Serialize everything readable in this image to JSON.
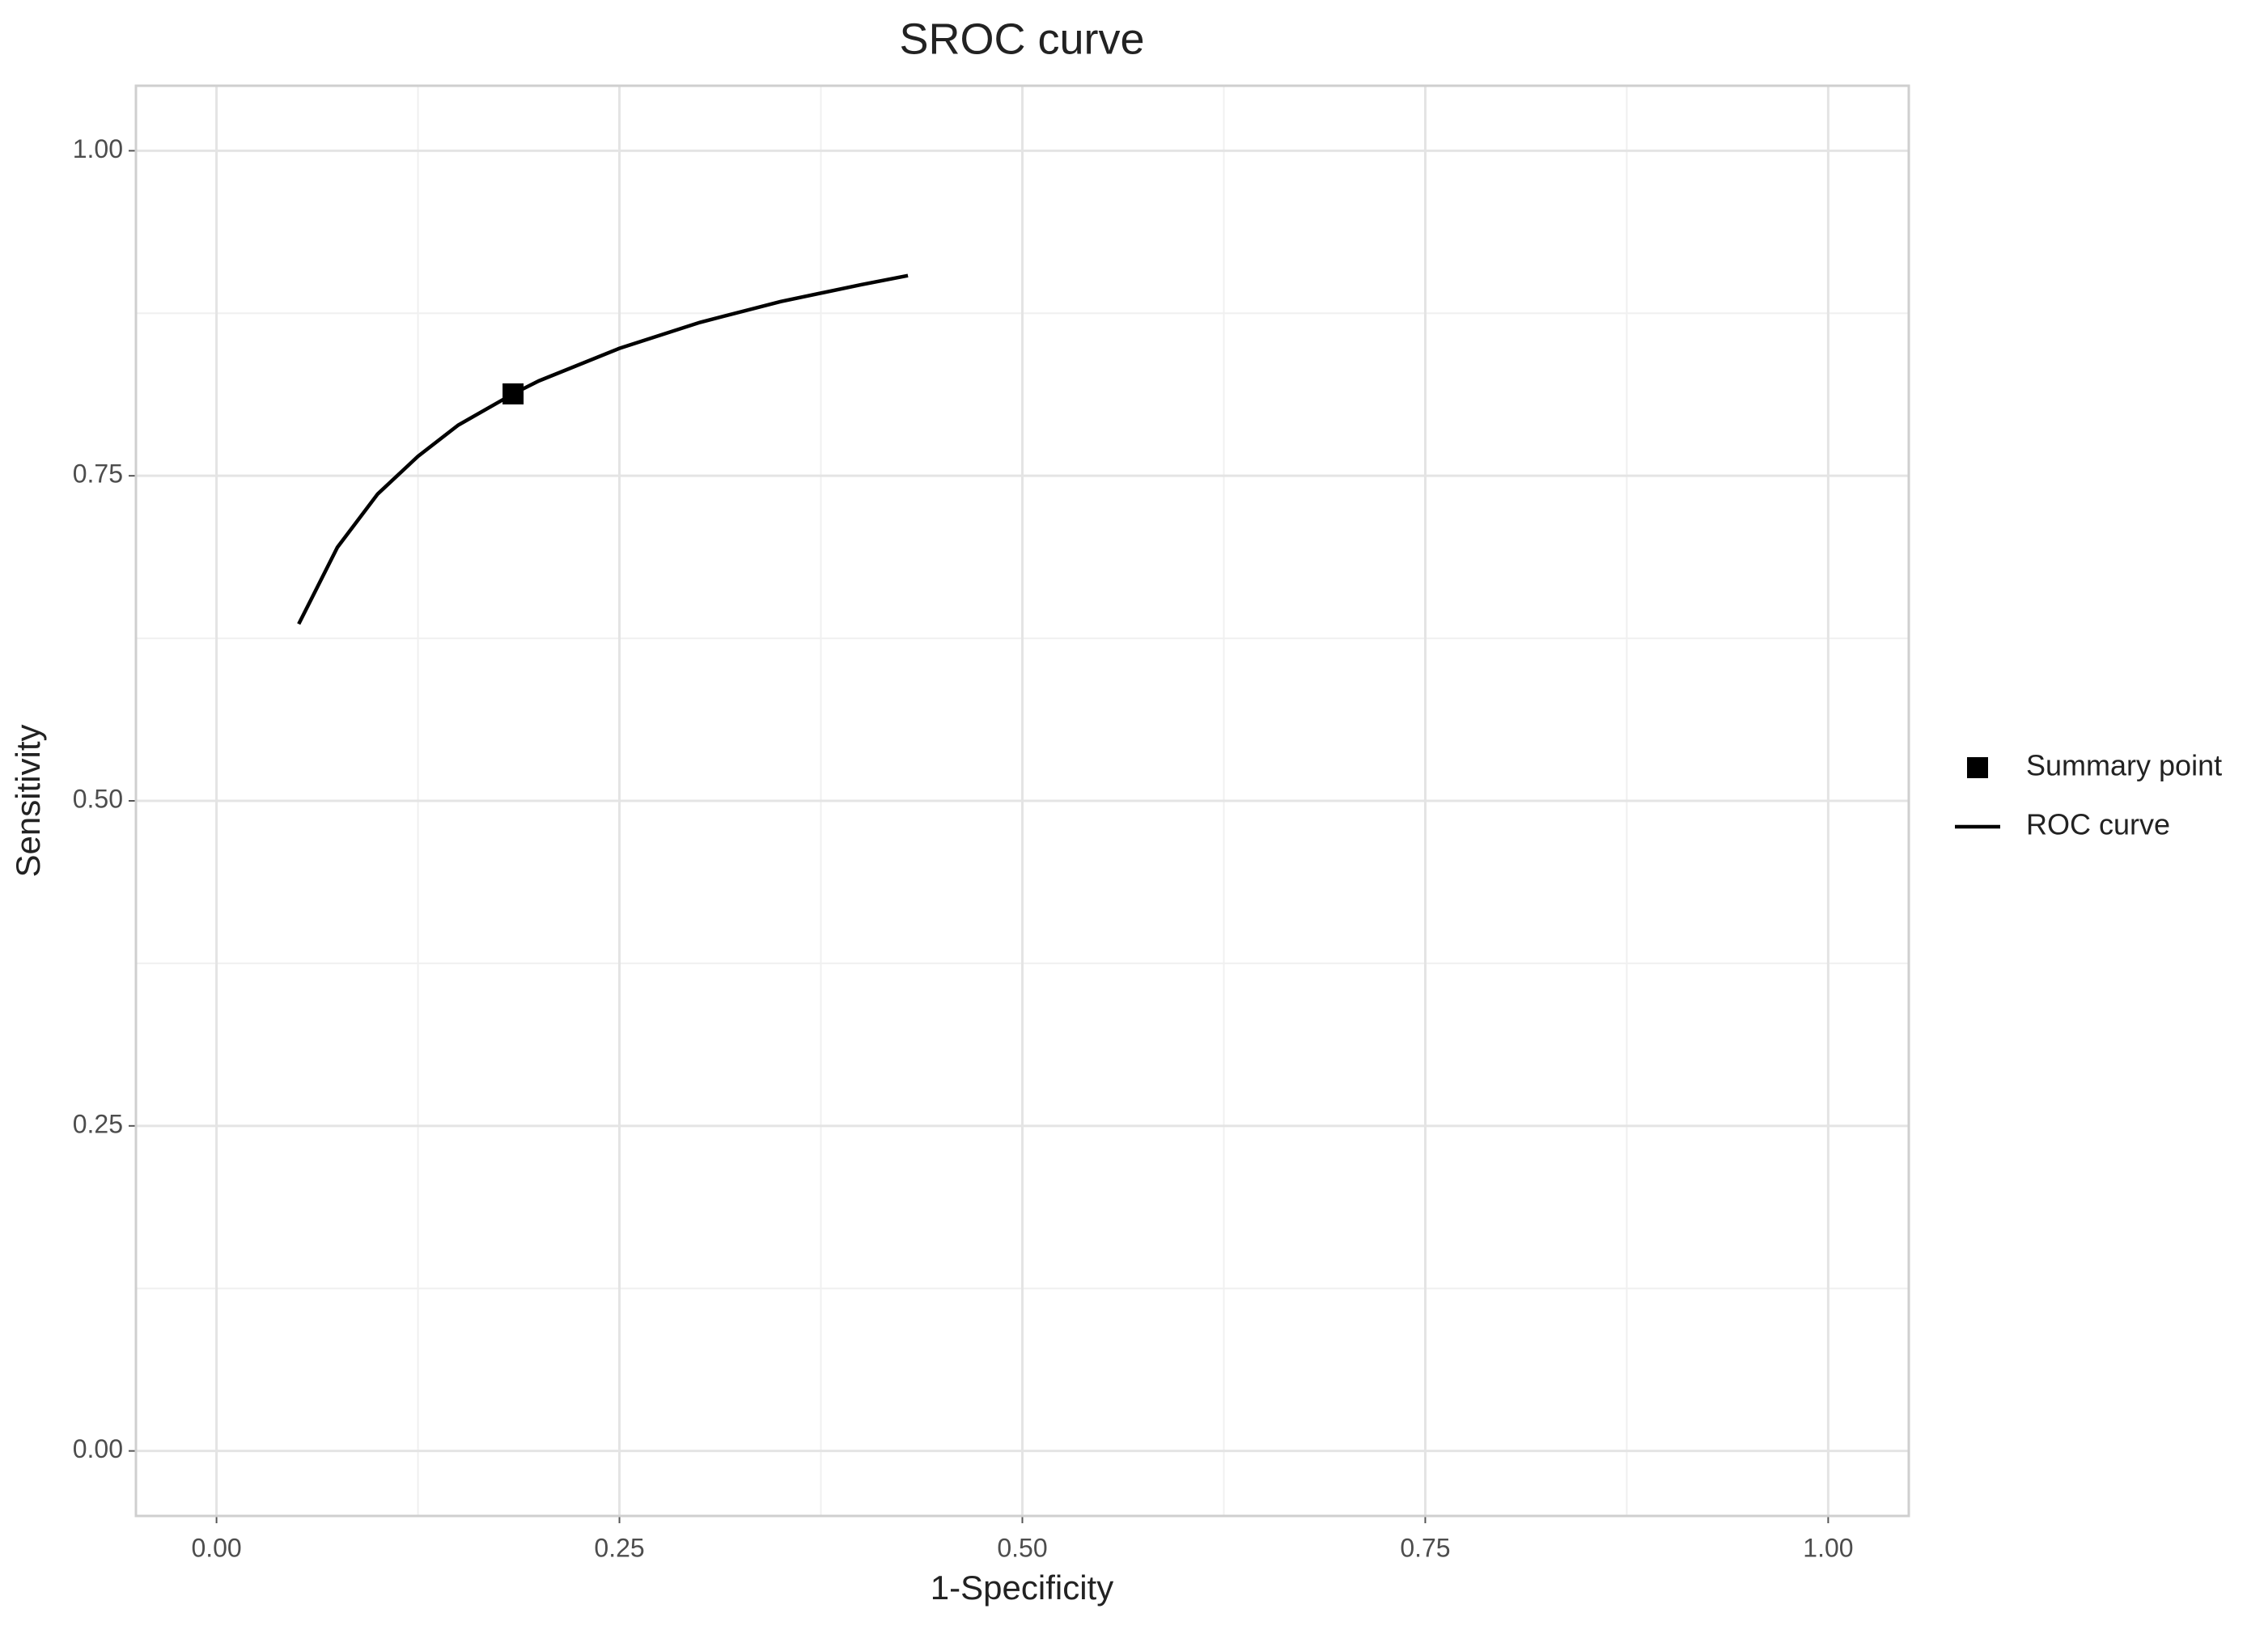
{
  "chart_data": {
    "type": "line",
    "title": "SROC curve",
    "xlabel": "1-Specificity",
    "ylabel": "Sensitivity",
    "series": [
      {
        "name": "Summary point",
        "type": "scatter",
        "color": "#000000",
        "x": [
          0.184
        ],
        "values": [
          0.813
        ]
      },
      {
        "name": "ROC curve",
        "type": "line",
        "color": "#000000",
        "x": [
          0.051,
          0.075,
          0.1,
          0.125,
          0.15,
          0.184,
          0.2,
          0.25,
          0.3,
          0.35,
          0.4,
          0.429
        ],
        "values": [
          0.636,
          0.695,
          0.736,
          0.765,
          0.789,
          0.813,
          0.823,
          0.848,
          0.868,
          0.884,
          0.897,
          0.904
        ]
      }
    ],
    "xlim": [
      -0.05,
      1.05
    ],
    "ylim": [
      -0.05,
      1.05
    ],
    "xticks": [
      {
        "value": 0,
        "label": "0.00"
      },
      {
        "value": 0.25,
        "label": "0.25"
      },
      {
        "value": 0.5,
        "label": "0.50"
      },
      {
        "value": 0.75,
        "label": "0.75"
      },
      {
        "value": 1,
        "label": "1.00"
      }
    ],
    "yticks": [
      {
        "value": 0,
        "label": "0.00"
      },
      {
        "value": 0.25,
        "label": "0.25"
      },
      {
        "value": 0.5,
        "label": "0.50"
      },
      {
        "value": 0.75,
        "label": "0.75"
      },
      {
        "value": 1,
        "label": "1.00"
      }
    ],
    "grid": true,
    "legend": "right"
  }
}
